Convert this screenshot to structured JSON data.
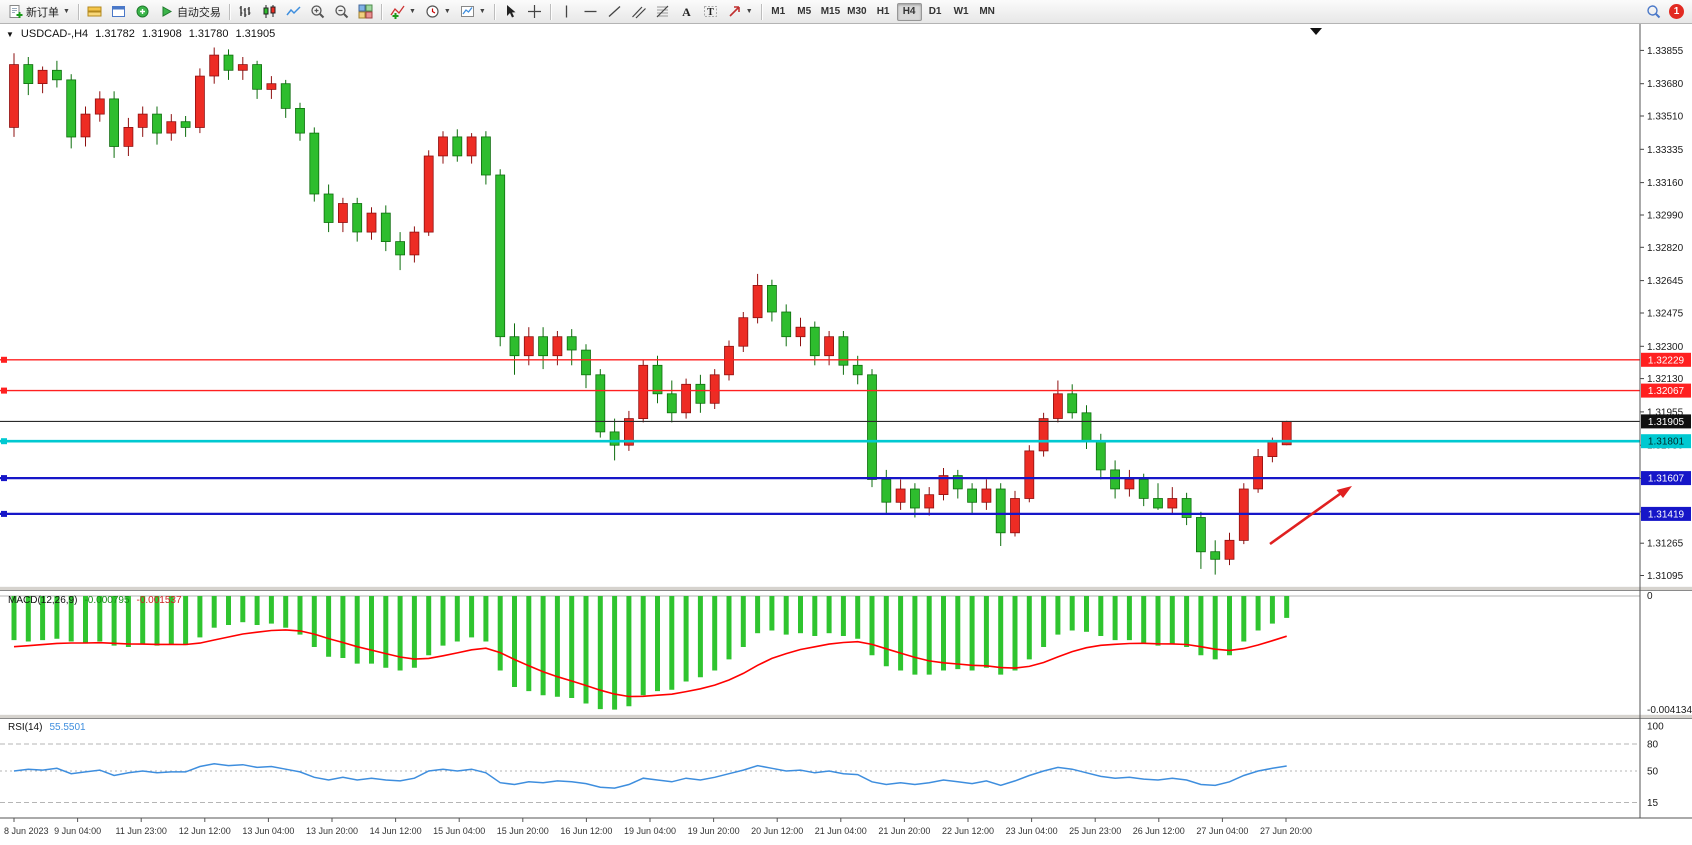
{
  "window": {
    "symbol": "USDCAD-,H4",
    "open": "1.31782",
    "high": "1.31908",
    "low": "1.31780",
    "close": "1.31905"
  },
  "toolbar": {
    "new_order": "新订单",
    "autotrade": "自动交易",
    "timeframes": [
      "M1",
      "M5",
      "M15",
      "M30",
      "H1",
      "H4",
      "D1",
      "W1",
      "MN"
    ],
    "active_timeframe": "H4",
    "notification_count": "1",
    "icons": [
      "new-order",
      "charts-stack",
      "new-chart",
      "profiles",
      "autotrading",
      "bar-chart",
      "candlestick-chart",
      "line-chart",
      "zoom-in",
      "zoom-out",
      "tile-windows",
      "indicators",
      "periods",
      "templates",
      "cursor",
      "crosshair",
      "vertical-line",
      "horizontal-line",
      "trendline",
      "equidistant-channel",
      "fibonacci",
      "text",
      "text-label",
      "arrows",
      "search",
      "notification"
    ]
  },
  "price_axis": {
    "labels": [
      "1.33855",
      "1.33680",
      "1.33510",
      "1.33335",
      "1.33160",
      "1.32990",
      "1.32820",
      "1.32645",
      "1.32475",
      "1.32300",
      "1.32130",
      "1.31955",
      "1.31780",
      "1.31605",
      "1.31430",
      "1.31265",
      "1.31095"
    ]
  },
  "levels": [
    {
      "label": "1.32229",
      "price": 1.32229,
      "color": "#ff2020",
      "lw": 1.4,
      "badge_bg": "#ff2020",
      "badge_fg": "#ffffff"
    },
    {
      "label": "1.32067",
      "price": 1.32067,
      "color": "#ff2020",
      "lw": 1.4,
      "badge_bg": "#ff2020",
      "badge_fg": "#ffffff"
    },
    {
      "label": "1.31801",
      "price": 1.31801,
      "color": "#00c9d1",
      "lw": 2.6,
      "badge_bg": "#00c9d1",
      "badge_fg": "#002a2a"
    },
    {
      "label": "1.31607",
      "price": 1.31607,
      "color": "#1616c8",
      "lw": 2.2,
      "badge_bg": "#1616c8",
      "badge_fg": "#ffffff"
    },
    {
      "label": "1.31419",
      "price": 1.31419,
      "color": "#1616c8",
      "lw": 2.2,
      "badge_bg": "#1616c8",
      "badge_fg": "#ffffff"
    }
  ],
  "current_price": {
    "label": "1.31905",
    "price": 1.31905,
    "color": "#2a2a2a",
    "badge_bg": "#101010",
    "badge_fg": "#ffffff"
  },
  "macd_panel": {
    "name": "MACD(12,26,9)",
    "main_value": "-0.000795",
    "signal_value": "-0.001537",
    "scale_top": "0",
    "scale_bottom": "-0.004134",
    "histogram_color": "#2fc42f",
    "signal_color": "#ff0000"
  },
  "rsi_panel": {
    "name": "RSI(14)",
    "value": "55.5501",
    "scale": [
      "100",
      "80",
      "50",
      "15"
    ],
    "levels": [
      80,
      50,
      15
    ],
    "line_color": "#3e8ede"
  },
  "time_axis": {
    "labels": [
      "8 Jun 2023",
      "9 Jun 04:00",
      "11 Jun 23:00",
      "12 Jun 12:00",
      "13 Jun 04:00",
      "13 Jun 20:00",
      "14 Jun 12:00",
      "15 Jun 04:00",
      "15 Jun 20:00",
      "16 Jun 12:00",
      "19 Jun 04:00",
      "19 Jun 20:00",
      "20 Jun 12:00",
      "21 Jun 04:00",
      "21 Jun 20:00",
      "22 Jun 12:00",
      "23 Jun 04:00",
      "25 Jun 23:00",
      "26 Jun 12:00",
      "27 Jun 04:00",
      "27 Jun 20:00"
    ]
  },
  "annotation": {
    "type": "arrow",
    "color": "#e02020"
  },
  "chart_data": {
    "type": "candlestick",
    "symbol": "USDCAD",
    "period": "H4",
    "up_color": "#ed2c24",
    "down_color": "#2ebd2e",
    "y_range": [
      1.3104,
      1.3392
    ],
    "horizontal_levels": [
      1.32229,
      1.32067,
      1.31905,
      1.31801,
      1.31607,
      1.31419
    ],
    "candles": [
      [
        1.3345,
        1.3384,
        1.334,
        1.3378
      ],
      [
        1.3378,
        1.3382,
        1.3362,
        1.3368
      ],
      [
        1.3368,
        1.3377,
        1.3363,
        1.3375
      ],
      [
        1.3375,
        1.338,
        1.3366,
        1.337
      ],
      [
        1.337,
        1.3373,
        1.3334,
        1.334
      ],
      [
        1.334,
        1.3356,
        1.3335,
        1.3352
      ],
      [
        1.3352,
        1.3364,
        1.3348,
        1.336
      ],
      [
        1.336,
        1.3364,
        1.3329,
        1.3335
      ],
      [
        1.3335,
        1.335,
        1.333,
        1.3345
      ],
      [
        1.3345,
        1.3356,
        1.334,
        1.3352
      ],
      [
        1.3352,
        1.3356,
        1.3336,
        1.3342
      ],
      [
        1.3342,
        1.3352,
        1.3338,
        1.3348
      ],
      [
        1.3348,
        1.3351,
        1.334,
        1.3345
      ],
      [
        1.3345,
        1.3376,
        1.3342,
        1.3372
      ],
      [
        1.3372,
        1.3387,
        1.3368,
        1.3383
      ],
      [
        1.3383,
        1.3386,
        1.337,
        1.3375
      ],
      [
        1.3375,
        1.3382,
        1.337,
        1.3378
      ],
      [
        1.3378,
        1.338,
        1.336,
        1.3365
      ],
      [
        1.3365,
        1.3372,
        1.336,
        1.3368
      ],
      [
        1.3368,
        1.337,
        1.335,
        1.3355
      ],
      [
        1.3355,
        1.3358,
        1.3338,
        1.3342
      ],
      [
        1.3342,
        1.3345,
        1.3306,
        1.331
      ],
      [
        1.331,
        1.3315,
        1.329,
        1.3295
      ],
      [
        1.3295,
        1.3308,
        1.329,
        1.3305
      ],
      [
        1.3305,
        1.3308,
        1.3285,
        1.329
      ],
      [
        1.329,
        1.3303,
        1.3286,
        1.33
      ],
      [
        1.33,
        1.3304,
        1.328,
        1.3285
      ],
      [
        1.3285,
        1.329,
        1.327,
        1.3278
      ],
      [
        1.3278,
        1.3293,
        1.3274,
        1.329
      ],
      [
        1.329,
        1.3333,
        1.3288,
        1.333
      ],
      [
        1.333,
        1.3343,
        1.3326,
        1.334
      ],
      [
        1.334,
        1.3344,
        1.3327,
        1.333
      ],
      [
        1.333,
        1.3342,
        1.3326,
        1.334
      ],
      [
        1.334,
        1.3343,
        1.3315,
        1.332
      ],
      [
        1.332,
        1.3323,
        1.323,
        1.3235
      ],
      [
        1.3235,
        1.3242,
        1.3215,
        1.3225
      ],
      [
        1.3225,
        1.324,
        1.322,
        1.3235
      ],
      [
        1.3235,
        1.324,
        1.3218,
        1.3225
      ],
      [
        1.3225,
        1.3238,
        1.322,
        1.3235
      ],
      [
        1.3235,
        1.3239,
        1.322,
        1.3228
      ],
      [
        1.3228,
        1.3231,
        1.3208,
        1.3215
      ],
      [
        1.3215,
        1.3218,
        1.3182,
        1.3185
      ],
      [
        1.3185,
        1.3192,
        1.317,
        1.3178
      ],
      [
        1.3178,
        1.3196,
        1.3175,
        1.3192
      ],
      [
        1.3192,
        1.3223,
        1.319,
        1.322
      ],
      [
        1.322,
        1.3225,
        1.32,
        1.3205
      ],
      [
        1.3205,
        1.3212,
        1.319,
        1.3195
      ],
      [
        1.3195,
        1.3213,
        1.3192,
        1.321
      ],
      [
        1.321,
        1.3215,
        1.3195,
        1.32
      ],
      [
        1.32,
        1.3218,
        1.3197,
        1.3215
      ],
      [
        1.3215,
        1.3233,
        1.3212,
        1.323
      ],
      [
        1.323,
        1.3248,
        1.3227,
        1.3245
      ],
      [
        1.3245,
        1.3268,
        1.3242,
        1.3262
      ],
      [
        1.3262,
        1.3265,
        1.3243,
        1.3248
      ],
      [
        1.3248,
        1.3252,
        1.323,
        1.3235
      ],
      [
        1.3235,
        1.3245,
        1.323,
        1.324
      ],
      [
        1.324,
        1.3243,
        1.322,
        1.3225
      ],
      [
        1.3225,
        1.3238,
        1.322,
        1.3235
      ],
      [
        1.3235,
        1.3238,
        1.3215,
        1.322
      ],
      [
        1.322,
        1.3225,
        1.321,
        1.3215
      ],
      [
        1.3215,
        1.3218,
        1.3156,
        1.316
      ],
      [
        1.316,
        1.3165,
        1.3142,
        1.3148
      ],
      [
        1.3148,
        1.316,
        1.3144,
        1.3155
      ],
      [
        1.3155,
        1.3158,
        1.314,
        1.3145
      ],
      [
        1.3145,
        1.3156,
        1.3141,
        1.3152
      ],
      [
        1.3152,
        1.3166,
        1.3149,
        1.3162
      ],
      [
        1.3162,
        1.3165,
        1.315,
        1.3155
      ],
      [
        1.3155,
        1.3158,
        1.3142,
        1.3148
      ],
      [
        1.3148,
        1.316,
        1.3144,
        1.3155
      ],
      [
        1.3155,
        1.3158,
        1.3125,
        1.3132
      ],
      [
        1.3132,
        1.3154,
        1.313,
        1.315
      ],
      [
        1.315,
        1.3178,
        1.3148,
        1.3175
      ],
      [
        1.3175,
        1.3195,
        1.3172,
        1.3192
      ],
      [
        1.3192,
        1.3212,
        1.319,
        1.3205
      ],
      [
        1.3205,
        1.321,
        1.3192,
        1.3195
      ],
      [
        1.3195,
        1.3199,
        1.3176,
        1.318
      ],
      [
        1.318,
        1.3184,
        1.316,
        1.3165
      ],
      [
        1.3165,
        1.317,
        1.315,
        1.3155
      ],
      [
        1.3155,
        1.3165,
        1.3151,
        1.316
      ],
      [
        1.316,
        1.3163,
        1.3146,
        1.315
      ],
      [
        1.315,
        1.3158,
        1.3144,
        1.3145
      ],
      [
        1.3145,
        1.3156,
        1.3142,
        1.315
      ],
      [
        1.315,
        1.3153,
        1.3136,
        1.314
      ],
      [
        1.314,
        1.3143,
        1.3113,
        1.3122
      ],
      [
        1.3122,
        1.3128,
        1.311,
        1.3118
      ],
      [
        1.3118,
        1.3132,
        1.3115,
        1.3128
      ],
      [
        1.3128,
        1.3158,
        1.3126,
        1.3155
      ],
      [
        1.3155,
        1.3176,
        1.3153,
        1.3172
      ],
      [
        1.3172,
        1.3182,
        1.3169,
        1.318
      ],
      [
        1.31782,
        1.31908,
        1.3178,
        1.31905
      ]
    ],
    "indicators": {
      "macd": {
        "params": "12,26,9",
        "main": [
          -0.0016,
          -0.00165,
          -0.0016,
          -0.00155,
          -0.00165,
          -0.0017,
          -0.00165,
          -0.0018,
          -0.00185,
          -0.00175,
          -0.0018,
          -0.00175,
          -0.00178,
          -0.0015,
          -0.00115,
          -0.00105,
          -0.00095,
          -0.00105,
          -0.001,
          -0.00115,
          -0.0014,
          -0.00185,
          -0.0022,
          -0.00225,
          -0.00245,
          -0.00245,
          -0.0026,
          -0.0027,
          -0.0026,
          -0.00215,
          -0.0018,
          -0.00165,
          -0.0015,
          -0.00165,
          -0.0027,
          -0.0033,
          -0.00345,
          -0.0036,
          -0.00365,
          -0.0037,
          -0.0039,
          -0.0041,
          -0.00412,
          -0.004,
          -0.0036,
          -0.00345,
          -0.0034,
          -0.0031,
          -0.00295,
          -0.0027,
          -0.0023,
          -0.00185,
          -0.00135,
          -0.00125,
          -0.0014,
          -0.00135,
          -0.00145,
          -0.00135,
          -0.00145,
          -0.00155,
          -0.00215,
          -0.00255,
          -0.0027,
          -0.00285,
          -0.00285,
          -0.0027,
          -0.00265,
          -0.0027,
          -0.0026,
          -0.00285,
          -0.0027,
          -0.0023,
          -0.00185,
          -0.0014,
          -0.00125,
          -0.0013,
          -0.00145,
          -0.0016,
          -0.0016,
          -0.0017,
          -0.0018,
          -0.00175,
          -0.00185,
          -0.00215,
          -0.0023,
          -0.00215,
          -0.00165,
          -0.00125,
          -0.001,
          -0.000795
        ],
        "main_last": -0.000795,
        "signal_last": -0.001537
      },
      "rsi": {
        "params": "14",
        "values": [
          50,
          52,
          51,
          53,
          47,
          49,
          51,
          45,
          48,
          50,
          48,
          49,
          49,
          55,
          58,
          56,
          57,
          54,
          55,
          52,
          49,
          43,
          40,
          43,
          40,
          42,
          40,
          39,
          42,
          50,
          52,
          50,
          52,
          48,
          37,
          35,
          38,
          37,
          39,
          38,
          36,
          32,
          31,
          35,
          42,
          40,
          38,
          42,
          40,
          43,
          47,
          51,
          56,
          53,
          50,
          51,
          48,
          50,
          47,
          46,
          38,
          35,
          37,
          35,
          37,
          40,
          38,
          36,
          39,
          34,
          39,
          45,
          50,
          54,
          52,
          48,
          44,
          42,
          43,
          41,
          40,
          42,
          40,
          35,
          34,
          38,
          45,
          50,
          53,
          55.5501
        ],
        "last": 55.5501
      }
    }
  }
}
